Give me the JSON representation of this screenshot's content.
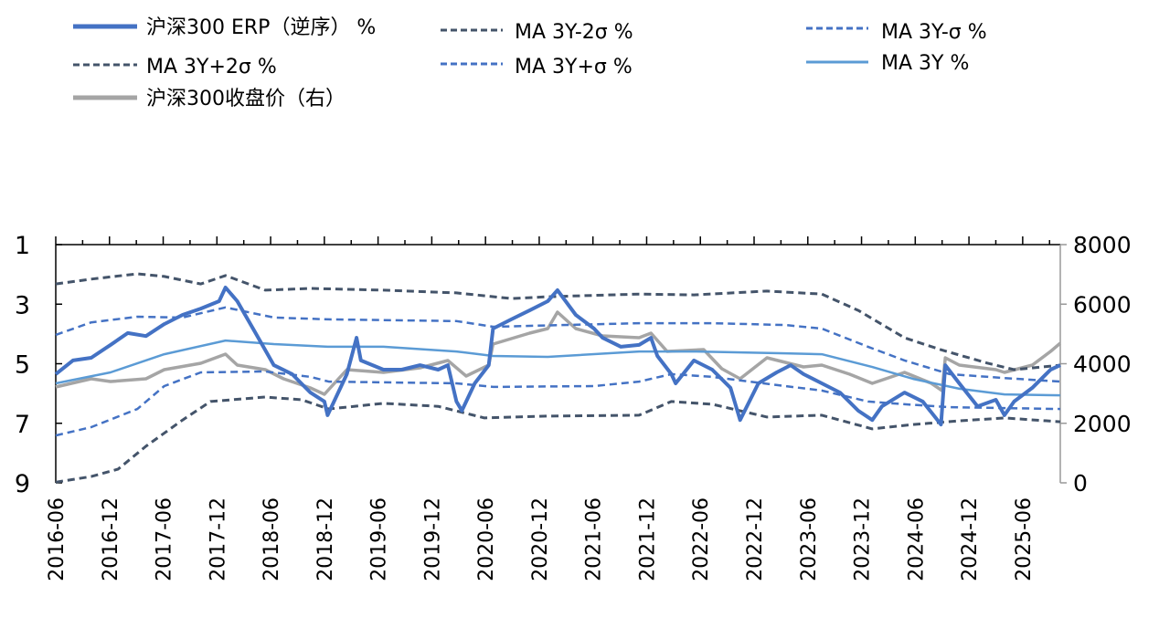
{
  "chart_data": {
    "type": "line",
    "title": "",
    "legend_position": "top",
    "legend": [
      {
        "key": "erp",
        "label": "沪深300 ERP（逆序） %"
      },
      {
        "key": "m2s",
        "label": "MA 3Y-2σ %"
      },
      {
        "key": "m1s",
        "label": "MA 3Y-σ %"
      },
      {
        "key": "p2s",
        "label": "MA 3Y+2σ %"
      },
      {
        "key": "p1s",
        "label": "MA 3Y+σ %"
      },
      {
        "key": "ma",
        "label": "MA 3Y %"
      },
      {
        "key": "price",
        "label": "沪深300收盘价（右）"
      }
    ],
    "xlim": [
      2016.42,
      2025.77
    ],
    "x_ticks": [
      {
        "v": 2016.42,
        "label": "2016-06"
      },
      {
        "v": 2016.92,
        "label": "2016-12"
      },
      {
        "v": 2017.42,
        "label": "2017-06"
      },
      {
        "v": 2017.92,
        "label": "2017-12"
      },
      {
        "v": 2018.42,
        "label": "2018-06"
      },
      {
        "v": 2018.92,
        "label": "2018-12"
      },
      {
        "v": 2019.42,
        "label": "2019-06"
      },
      {
        "v": 2019.92,
        "label": "2019-12"
      },
      {
        "v": 2020.42,
        "label": "2020-06"
      },
      {
        "v": 2020.92,
        "label": "2020-12"
      },
      {
        "v": 2021.42,
        "label": "2021-06"
      },
      {
        "v": 2021.92,
        "label": "2021-12"
      },
      {
        "v": 2022.42,
        "label": "2022-06"
      },
      {
        "v": 2022.92,
        "label": "2022-12"
      },
      {
        "v": 2023.42,
        "label": "2023-06"
      },
      {
        "v": 2023.92,
        "label": "2023-12"
      },
      {
        "v": 2024.42,
        "label": "2024-06"
      },
      {
        "v": 2024.92,
        "label": "2024-12"
      },
      {
        "v": 2025.42,
        "label": "2025-06"
      }
    ],
    "y_left": {
      "min": 1,
      "max": 9,
      "inverted": true,
      "ticks": [
        "1",
        "3",
        "5",
        "7",
        "9"
      ]
    },
    "y_right": {
      "min": 0,
      "max": 8000,
      "ticks": [
        "0",
        "2000",
        "4000",
        "6000",
        "8000"
      ]
    },
    "colors": {
      "erp": "#4472C4",
      "m2s": "#44546A",
      "m1s": "#4472C4",
      "p2s": "#44546A",
      "p1s": "#4472C4",
      "ma": "#5B9BD5",
      "price": "#A5A5A5"
    },
    "series": {
      "erp": [
        [
          2016.42,
          5.35
        ],
        [
          2016.58,
          4.89
        ],
        [
          2016.75,
          4.8
        ],
        [
          2016.93,
          4.37
        ],
        [
          2017.09,
          3.97
        ],
        [
          2017.26,
          4.07
        ],
        [
          2017.43,
          3.67
        ],
        [
          2017.6,
          3.36
        ],
        [
          2017.77,
          3.15
        ],
        [
          2017.94,
          2.9
        ],
        [
          2018.0,
          2.44
        ],
        [
          2018.11,
          2.9
        ],
        [
          2018.28,
          3.97
        ],
        [
          2018.45,
          5.05
        ],
        [
          2018.62,
          5.35
        ],
        [
          2018.79,
          5.97
        ],
        [
          2018.92,
          6.27
        ],
        [
          2018.95,
          6.73
        ],
        [
          2019.13,
          5.35
        ],
        [
          2019.22,
          4.13
        ],
        [
          2019.26,
          4.89
        ],
        [
          2019.47,
          5.2
        ],
        [
          2019.64,
          5.2
        ],
        [
          2019.81,
          5.05
        ],
        [
          2019.98,
          5.2
        ],
        [
          2020.07,
          5.05
        ],
        [
          2020.15,
          6.27
        ],
        [
          2020.2,
          6.58
        ],
        [
          2020.32,
          5.66
        ],
        [
          2020.45,
          5.05
        ],
        [
          2020.49,
          3.82
        ],
        [
          2020.66,
          3.51
        ],
        [
          2020.83,
          3.21
        ],
        [
          2021.0,
          2.9
        ],
        [
          2021.09,
          2.53
        ],
        [
          2021.26,
          3.36
        ],
        [
          2021.43,
          3.82
        ],
        [
          2021.51,
          4.13
        ],
        [
          2021.68,
          4.43
        ],
        [
          2021.85,
          4.37
        ],
        [
          2021.96,
          4.13
        ],
        [
          2022.02,
          4.74
        ],
        [
          2022.15,
          5.35
        ],
        [
          2022.19,
          5.66
        ],
        [
          2022.36,
          4.89
        ],
        [
          2022.53,
          5.2
        ],
        [
          2022.7,
          5.81
        ],
        [
          2022.79,
          6.89
        ],
        [
          2022.96,
          5.66
        ],
        [
          2023.13,
          5.29
        ],
        [
          2023.26,
          5.05
        ],
        [
          2023.38,
          5.35
        ],
        [
          2023.55,
          5.66
        ],
        [
          2023.72,
          5.97
        ],
        [
          2023.89,
          6.58
        ],
        [
          2024.02,
          6.89
        ],
        [
          2024.11,
          6.43
        ],
        [
          2024.32,
          5.97
        ],
        [
          2024.49,
          6.27
        ],
        [
          2024.66,
          7.04
        ],
        [
          2024.7,
          5.05
        ],
        [
          2024.83,
          5.66
        ],
        [
          2025.0,
          6.43
        ],
        [
          2025.17,
          6.21
        ],
        [
          2025.25,
          6.73
        ],
        [
          2025.34,
          6.27
        ],
        [
          2025.51,
          5.81
        ],
        [
          2025.68,
          5.2
        ],
        [
          2025.77,
          5.05
        ]
      ],
      "m2s": [
        [
          2016.42,
          2.32
        ],
        [
          2016.75,
          2.16
        ],
        [
          2017.18,
          1.98
        ],
        [
          2017.43,
          2.07
        ],
        [
          2017.77,
          2.32
        ],
        [
          2018.0,
          2.04
        ],
        [
          2018.37,
          2.53
        ],
        [
          2018.79,
          2.47
        ],
        [
          2019.47,
          2.53
        ],
        [
          2020.15,
          2.62
        ],
        [
          2020.66,
          2.81
        ],
        [
          2021.0,
          2.75
        ],
        [
          2021.85,
          2.66
        ],
        [
          2022.36,
          2.69
        ],
        [
          2023.04,
          2.56
        ],
        [
          2023.55,
          2.66
        ],
        [
          2023.89,
          3.21
        ],
        [
          2024.32,
          4.13
        ],
        [
          2024.66,
          4.53
        ],
        [
          2025.09,
          4.98
        ],
        [
          2025.34,
          5.2
        ],
        [
          2025.77,
          5.05
        ]
      ],
      "m1s": [
        [
          2016.42,
          4.03
        ],
        [
          2016.75,
          3.61
        ],
        [
          2017.18,
          3.42
        ],
        [
          2017.6,
          3.45
        ],
        [
          2018.0,
          3.11
        ],
        [
          2018.45,
          3.45
        ],
        [
          2018.96,
          3.51
        ],
        [
          2020.15,
          3.57
        ],
        [
          2020.49,
          3.76
        ],
        [
          2021.85,
          3.64
        ],
        [
          2022.53,
          3.64
        ],
        [
          2023.21,
          3.7
        ],
        [
          2023.55,
          3.82
        ],
        [
          2023.98,
          4.43
        ],
        [
          2024.32,
          4.89
        ],
        [
          2024.74,
          5.35
        ],
        [
          2025.25,
          5.48
        ],
        [
          2025.77,
          5.6
        ]
      ],
      "ma": [
        [
          2016.42,
          5.66
        ],
        [
          2016.93,
          5.29
        ],
        [
          2017.43,
          4.68
        ],
        [
          2018.0,
          4.22
        ],
        [
          2018.45,
          4.34
        ],
        [
          2018.95,
          4.43
        ],
        [
          2019.47,
          4.43
        ],
        [
          2020.15,
          4.59
        ],
        [
          2020.49,
          4.74
        ],
        [
          2021.0,
          4.77
        ],
        [
          2021.85,
          4.59
        ],
        [
          2022.36,
          4.59
        ],
        [
          2023.21,
          4.65
        ],
        [
          2023.55,
          4.68
        ],
        [
          2024.02,
          5.11
        ],
        [
          2024.4,
          5.51
        ],
        [
          2024.83,
          5.84
        ],
        [
          2025.25,
          6.03
        ],
        [
          2025.77,
          6.06
        ]
      ],
      "p1s": [
        [
          2016.42,
          7.41
        ],
        [
          2016.75,
          7.13
        ],
        [
          2017.18,
          6.52
        ],
        [
          2017.43,
          5.75
        ],
        [
          2017.77,
          5.29
        ],
        [
          2018.37,
          5.26
        ],
        [
          2018.79,
          5.44
        ],
        [
          2018.96,
          5.6
        ],
        [
          2020.15,
          5.66
        ],
        [
          2020.49,
          5.78
        ],
        [
          2021.43,
          5.75
        ],
        [
          2021.85,
          5.6
        ],
        [
          2022.15,
          5.35
        ],
        [
          2022.53,
          5.44
        ],
        [
          2023.21,
          5.75
        ],
        [
          2023.55,
          5.9
        ],
        [
          2023.98,
          6.27
        ],
        [
          2024.32,
          6.36
        ],
        [
          2024.74,
          6.46
        ],
        [
          2025.25,
          6.49
        ],
        [
          2025.77,
          6.52
        ]
      ],
      "p2s": [
        [
          2016.42,
          8.98
        ],
        [
          2016.75,
          8.79
        ],
        [
          2017.0,
          8.54
        ],
        [
          2017.26,
          7.77
        ],
        [
          2017.6,
          6.89
        ],
        [
          2017.86,
          6.27
        ],
        [
          2018.37,
          6.12
        ],
        [
          2018.71,
          6.21
        ],
        [
          2018.96,
          6.52
        ],
        [
          2019.47,
          6.33
        ],
        [
          2019.98,
          6.43
        ],
        [
          2020.41,
          6.82
        ],
        [
          2021.0,
          6.76
        ],
        [
          2021.85,
          6.73
        ],
        [
          2022.15,
          6.27
        ],
        [
          2022.53,
          6.36
        ],
        [
          2023.04,
          6.79
        ],
        [
          2023.55,
          6.73
        ],
        [
          2024.02,
          7.19
        ],
        [
          2024.4,
          7.04
        ],
        [
          2024.83,
          6.92
        ],
        [
          2025.25,
          6.82
        ],
        [
          2025.77,
          6.95
        ]
      ],
      "price": [
        [
          2016.42,
          3218
        ],
        [
          2016.75,
          3494
        ],
        [
          2016.93,
          3402
        ],
        [
          2017.26,
          3494
        ],
        [
          2017.43,
          3800
        ],
        [
          2017.77,
          4015
        ],
        [
          2018.0,
          4322
        ],
        [
          2018.11,
          3954
        ],
        [
          2018.37,
          3800
        ],
        [
          2018.54,
          3494
        ],
        [
          2018.79,
          3188
        ],
        [
          2018.92,
          2973
        ],
        [
          2019.13,
          3800
        ],
        [
          2019.47,
          3709
        ],
        [
          2019.81,
          3862
        ],
        [
          2020.07,
          4107
        ],
        [
          2020.24,
          3586
        ],
        [
          2020.45,
          3954
        ],
        [
          2020.49,
          4659
        ],
        [
          2020.83,
          5027
        ],
        [
          2021.0,
          5180
        ],
        [
          2021.09,
          5732
        ],
        [
          2021.26,
          5180
        ],
        [
          2021.51,
          4935
        ],
        [
          2021.85,
          4873
        ],
        [
          2021.96,
          5027
        ],
        [
          2022.11,
          4414
        ],
        [
          2022.45,
          4475
        ],
        [
          2022.62,
          3831
        ],
        [
          2022.79,
          3494
        ],
        [
          2023.04,
          4199
        ],
        [
          2023.38,
          3893
        ],
        [
          2023.55,
          3954
        ],
        [
          2023.81,
          3647
        ],
        [
          2024.02,
          3341
        ],
        [
          2024.32,
          3709
        ],
        [
          2024.57,
          3341
        ],
        [
          2024.67,
          3096
        ],
        [
          2024.7,
          4199
        ],
        [
          2024.83,
          3954
        ],
        [
          2025.17,
          3800
        ],
        [
          2025.25,
          3709
        ],
        [
          2025.51,
          3954
        ],
        [
          2025.68,
          4414
        ],
        [
          2025.77,
          4690
        ]
      ]
    }
  }
}
